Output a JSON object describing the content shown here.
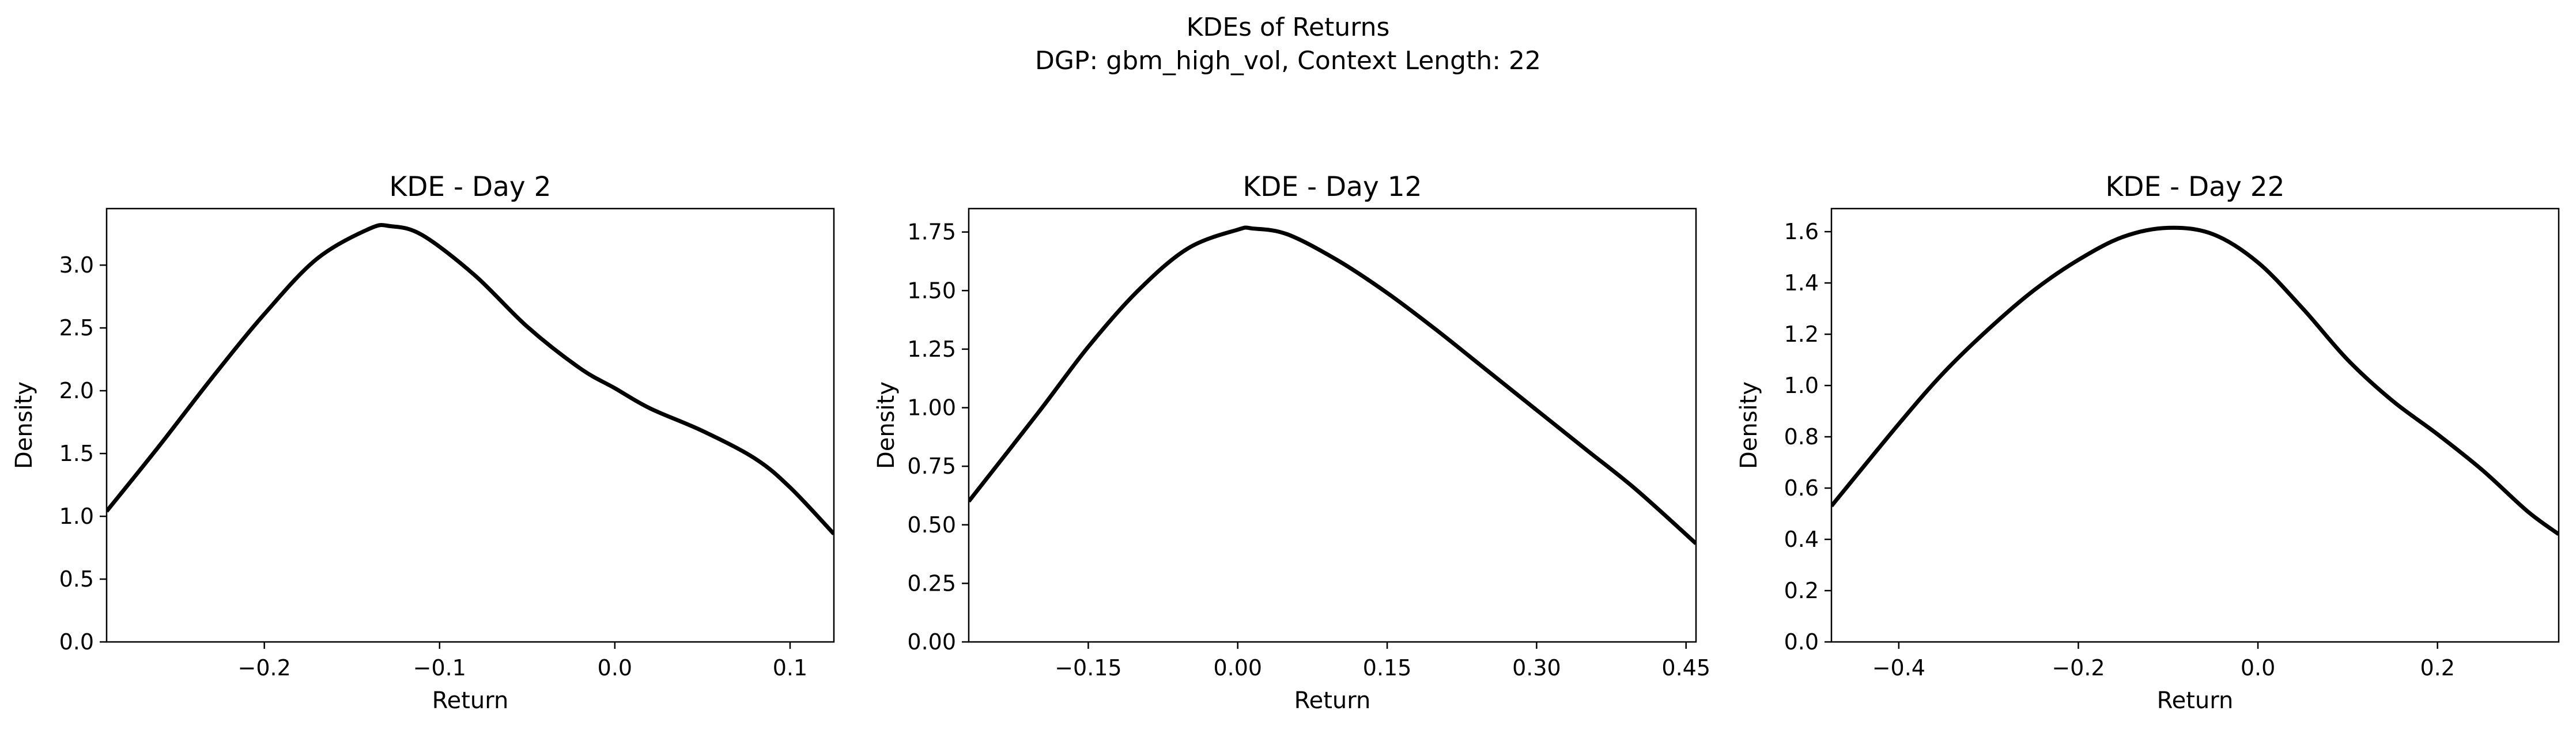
{
  "figure": {
    "suptitle_line1": "KDEs of Returns",
    "suptitle_line2": "DGP: gbm_high_vol, Context Length: 22"
  },
  "style": {
    "line_color": "#000000",
    "axis_color": "#000000",
    "background": "#ffffff"
  },
  "chart_data": [
    {
      "type": "line",
      "title": "KDE - Day 2",
      "xlabel": "Return",
      "ylabel": "Density",
      "grid": false,
      "xlim": [
        -0.29,
        0.125
      ],
      "ylim": [
        0,
        3.45
      ],
      "xticks": [
        -0.2,
        -0.1,
        0.0,
        0.1
      ],
      "xtick_labels": [
        "−0.2",
        "−0.1",
        "0.0",
        "0.1"
      ],
      "yticks": [
        0,
        0.5,
        1.0,
        1.5,
        2.0,
        2.5,
        3.0
      ],
      "ytick_labels": [
        "0.0",
        "0.5",
        "1.0",
        "1.5",
        "2.0",
        "2.5",
        "3.0"
      ],
      "series": [
        {
          "x": [
            -0.29,
            -0.26,
            -0.23,
            -0.2,
            -0.17,
            -0.14,
            -0.128,
            -0.11,
            -0.08,
            -0.05,
            -0.02,
            0.0,
            0.02,
            0.05,
            0.08,
            0.1,
            0.125
          ],
          "y": [
            1.04,
            1.56,
            2.1,
            2.61,
            3.05,
            3.29,
            3.31,
            3.24,
            2.92,
            2.51,
            2.18,
            2.02,
            1.86,
            1.68,
            1.46,
            1.23,
            0.86
          ]
        }
      ]
    },
    {
      "type": "line",
      "title": "KDE - Day 12",
      "xlabel": "Return",
      "ylabel": "Density",
      "grid": false,
      "xlim": [
        -0.27,
        0.46
      ],
      "ylim": [
        0,
        1.85
      ],
      "xticks": [
        -0.15,
        0.0,
        0.15,
        0.3,
        0.45
      ],
      "xtick_labels": [
        "−0.15",
        "0.00",
        "0.15",
        "0.30",
        "0.45"
      ],
      "yticks": [
        0,
        0.25,
        0.5,
        0.75,
        1.0,
        1.25,
        1.5,
        1.75
      ],
      "ytick_labels": [
        "0.00",
        "0.25",
        "0.50",
        "0.75",
        "1.00",
        "1.25",
        "1.50",
        "1.75"
      ],
      "series": [
        {
          "x": [
            -0.27,
            -0.2,
            -0.15,
            -0.1,
            -0.05,
            0.0,
            0.015,
            0.05,
            0.1,
            0.15,
            0.2,
            0.25,
            0.3,
            0.35,
            0.4,
            0.46
          ],
          "y": [
            0.6,
            0.98,
            1.26,
            1.5,
            1.68,
            1.76,
            1.765,
            1.74,
            1.63,
            1.49,
            1.33,
            1.16,
            0.99,
            0.82,
            0.65,
            0.42
          ]
        }
      ]
    },
    {
      "type": "line",
      "title": "KDE - Day 22",
      "xlabel": "Return",
      "ylabel": "Density",
      "grid": false,
      "xlim": [
        -0.475,
        0.335
      ],
      "ylim": [
        0,
        1.69
      ],
      "xticks": [
        -0.4,
        -0.2,
        0.0,
        0.2
      ],
      "xtick_labels": [
        "−0.4",
        "−0.2",
        "0.0",
        "0.2"
      ],
      "yticks": [
        0,
        0.2,
        0.4,
        0.6,
        0.8,
        1.0,
        1.2,
        1.4,
        1.6
      ],
      "ytick_labels": [
        "0.0",
        "0.2",
        "0.4",
        "0.6",
        "0.8",
        "1.0",
        "1.2",
        "1.4",
        "1.6"
      ],
      "series": [
        {
          "x": [
            -0.475,
            -0.4,
            -0.35,
            -0.3,
            -0.25,
            -0.2,
            -0.15,
            -0.1,
            -0.05,
            0.0,
            0.05,
            0.1,
            0.15,
            0.2,
            0.25,
            0.3,
            0.335
          ],
          "y": [
            0.53,
            0.85,
            1.05,
            1.22,
            1.37,
            1.49,
            1.58,
            1.615,
            1.59,
            1.48,
            1.3,
            1.1,
            0.94,
            0.81,
            0.67,
            0.51,
            0.42
          ]
        }
      ]
    }
  ]
}
